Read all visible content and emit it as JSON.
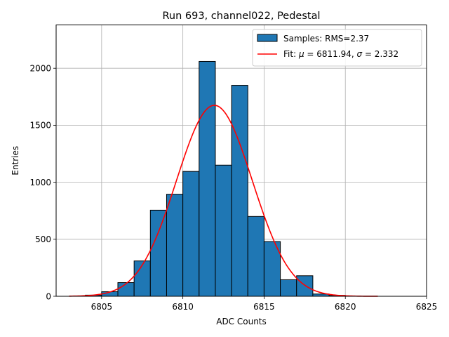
{
  "chart_data": {
    "type": "bar",
    "title": "Run 693, channel022, Pedestal",
    "xlabel": "ADC Counts",
    "ylabel": "Entries",
    "xlim": [
      6802.2,
      6825.0
    ],
    "ylim": [
      0,
      2380
    ],
    "grid": true,
    "legend_position": "top-right",
    "x_ticks": [
      {
        "value": 6805,
        "label": "6805"
      },
      {
        "value": 6810,
        "label": "6810"
      },
      {
        "value": 6815,
        "label": "6815"
      },
      {
        "value": 6820,
        "label": "6820"
      },
      {
        "value": 6825,
        "label": "6825"
      }
    ],
    "y_ticks": [
      {
        "value": 0,
        "label": "0"
      },
      {
        "value": 500,
        "label": "500"
      },
      {
        "value": 1000,
        "label": "1000"
      },
      {
        "value": 1500,
        "label": "1500"
      },
      {
        "value": 2000,
        "label": "2000"
      }
    ],
    "histogram": {
      "name": "Samples: RMS=2.37",
      "color": "#1f77b4",
      "edge_color": "#000000",
      "bins": [
        {
          "x0": 6804.0,
          "x1": 6805.0,
          "count": 10
        },
        {
          "x0": 6805.0,
          "x1": 6806.0,
          "count": 40
        },
        {
          "x0": 6806.0,
          "x1": 6807.0,
          "count": 120
        },
        {
          "x0": 6807.0,
          "x1": 6808.0,
          "count": 310
        },
        {
          "x0": 6808.0,
          "x1": 6809.0,
          "count": 755
        },
        {
          "x0": 6809.0,
          "x1": 6810.0,
          "count": 895
        },
        {
          "x0": 6810.0,
          "x1": 6811.0,
          "count": 1095
        },
        {
          "x0": 6811.0,
          "x1": 6812.0,
          "count": 2060
        },
        {
          "x0": 6812.0,
          "x1": 6813.0,
          "count": 1150
        },
        {
          "x0": 6813.0,
          "x1": 6814.0,
          "count": 1850
        },
        {
          "x0": 6814.0,
          "x1": 6815.0,
          "count": 700
        },
        {
          "x0": 6815.0,
          "x1": 6816.0,
          "count": 480
        },
        {
          "x0": 6816.0,
          "x1": 6817.0,
          "count": 145
        },
        {
          "x0": 6817.0,
          "x1": 6818.0,
          "count": 180
        },
        {
          "x0": 6818.0,
          "x1": 6819.0,
          "count": 20
        },
        {
          "x0": 6819.0,
          "x1": 6820.0,
          "count": 8
        }
      ]
    },
    "fit": {
      "name_parts": [
        "Fit: ",
        "μ",
        " = 6811.94, ",
        "σ",
        " = 2.332"
      ],
      "color": "#ff0000",
      "mu": 6811.94,
      "sigma": 2.332,
      "amplitude": 1675,
      "x_range": [
        6803.0,
        6822.0
      ]
    }
  }
}
